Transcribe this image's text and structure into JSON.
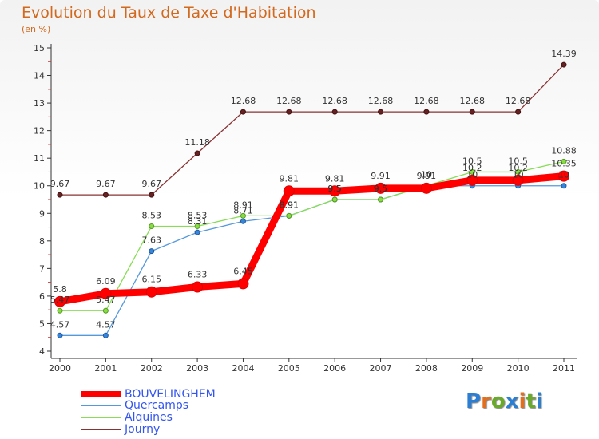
{
  "title": "Evolution du Taux de Taxe d'Habitation",
  "subtitle": "(en %)",
  "logo": {
    "text": "Proxiti",
    "letters": [
      {
        "ch": "P",
        "color": "#2a7fd4"
      },
      {
        "ch": "r",
        "color": "#e07020"
      },
      {
        "ch": "o",
        "color": "#6aaa2a"
      },
      {
        "ch": "x",
        "color": "#2a7fd4"
      },
      {
        "ch": "i",
        "color": "#e07020"
      },
      {
        "ch": "t",
        "color": "#6aaa2a"
      },
      {
        "ch": "i",
        "color": "#2a7fd4"
      }
    ]
  },
  "chart_data": {
    "type": "line",
    "title": "Evolution du Taux de Taxe d'Habitation",
    "ylabel": "(en %)",
    "xlabel": "",
    "x": [
      "2000",
      "2001",
      "2002",
      "2003",
      "2004",
      "2005",
      "2006",
      "2007",
      "2008",
      "2009",
      "2010",
      "2011"
    ],
    "ylim": [
      4,
      15
    ],
    "yticks": [
      4,
      5,
      6,
      7,
      8,
      9,
      10,
      11,
      12,
      13,
      14,
      15
    ],
    "grid": false,
    "legend_position": "bottom-left",
    "series": [
      {
        "name": "BOUVELINGHEM",
        "color": "#ff0000",
        "values": [
          5.8,
          6.09,
          6.15,
          6.33,
          6.45,
          9.81,
          9.81,
          9.91,
          9.91,
          10.2,
          10.2,
          10.35
        ],
        "labels": [
          "5.8",
          "6.09",
          "6.15",
          "6.33",
          "6.45",
          "9.81",
          "9.81",
          "9.91",
          "9.91",
          "10.2",
          "10.2",
          "10.35"
        ]
      },
      {
        "name": "Quercamps",
        "color": "#5599dd",
        "values": [
          4.57,
          4.57,
          7.63,
          8.31,
          8.71,
          8.91,
          9.5,
          9.5,
          10.0,
          10.0,
          10.0,
          10.0
        ],
        "labels": [
          "4.57",
          "4.57",
          "7.63",
          "8.31",
          "8.71",
          "8.91",
          "9.5",
          "9.5",
          "10",
          "10",
          "10",
          "10"
        ]
      },
      {
        "name": "Alquines",
        "color": "#88dd55",
        "values": [
          5.47,
          5.47,
          8.53,
          8.53,
          8.91,
          8.91,
          9.5,
          9.5,
          10.0,
          10.5,
          10.5,
          10.88
        ],
        "labels": [
          "5.47",
          "5.47",
          "8.53",
          "8.53",
          "8.91",
          "8.91",
          "9.5",
          "9.5",
          "10",
          "10.5",
          "10.5",
          "10.88"
        ]
      },
      {
        "name": "Journy",
        "color": "#883333",
        "values": [
          9.67,
          9.67,
          9.67,
          11.18,
          12.68,
          12.68,
          12.68,
          12.68,
          12.68,
          12.68,
          12.68,
          14.39
        ],
        "labels": [
          "9.67",
          "9.67",
          "9.67",
          "11.18",
          "12.68",
          "12.68",
          "12.68",
          "12.68",
          "12.68",
          "12.68",
          "12.68",
          "14.39"
        ]
      }
    ]
  }
}
